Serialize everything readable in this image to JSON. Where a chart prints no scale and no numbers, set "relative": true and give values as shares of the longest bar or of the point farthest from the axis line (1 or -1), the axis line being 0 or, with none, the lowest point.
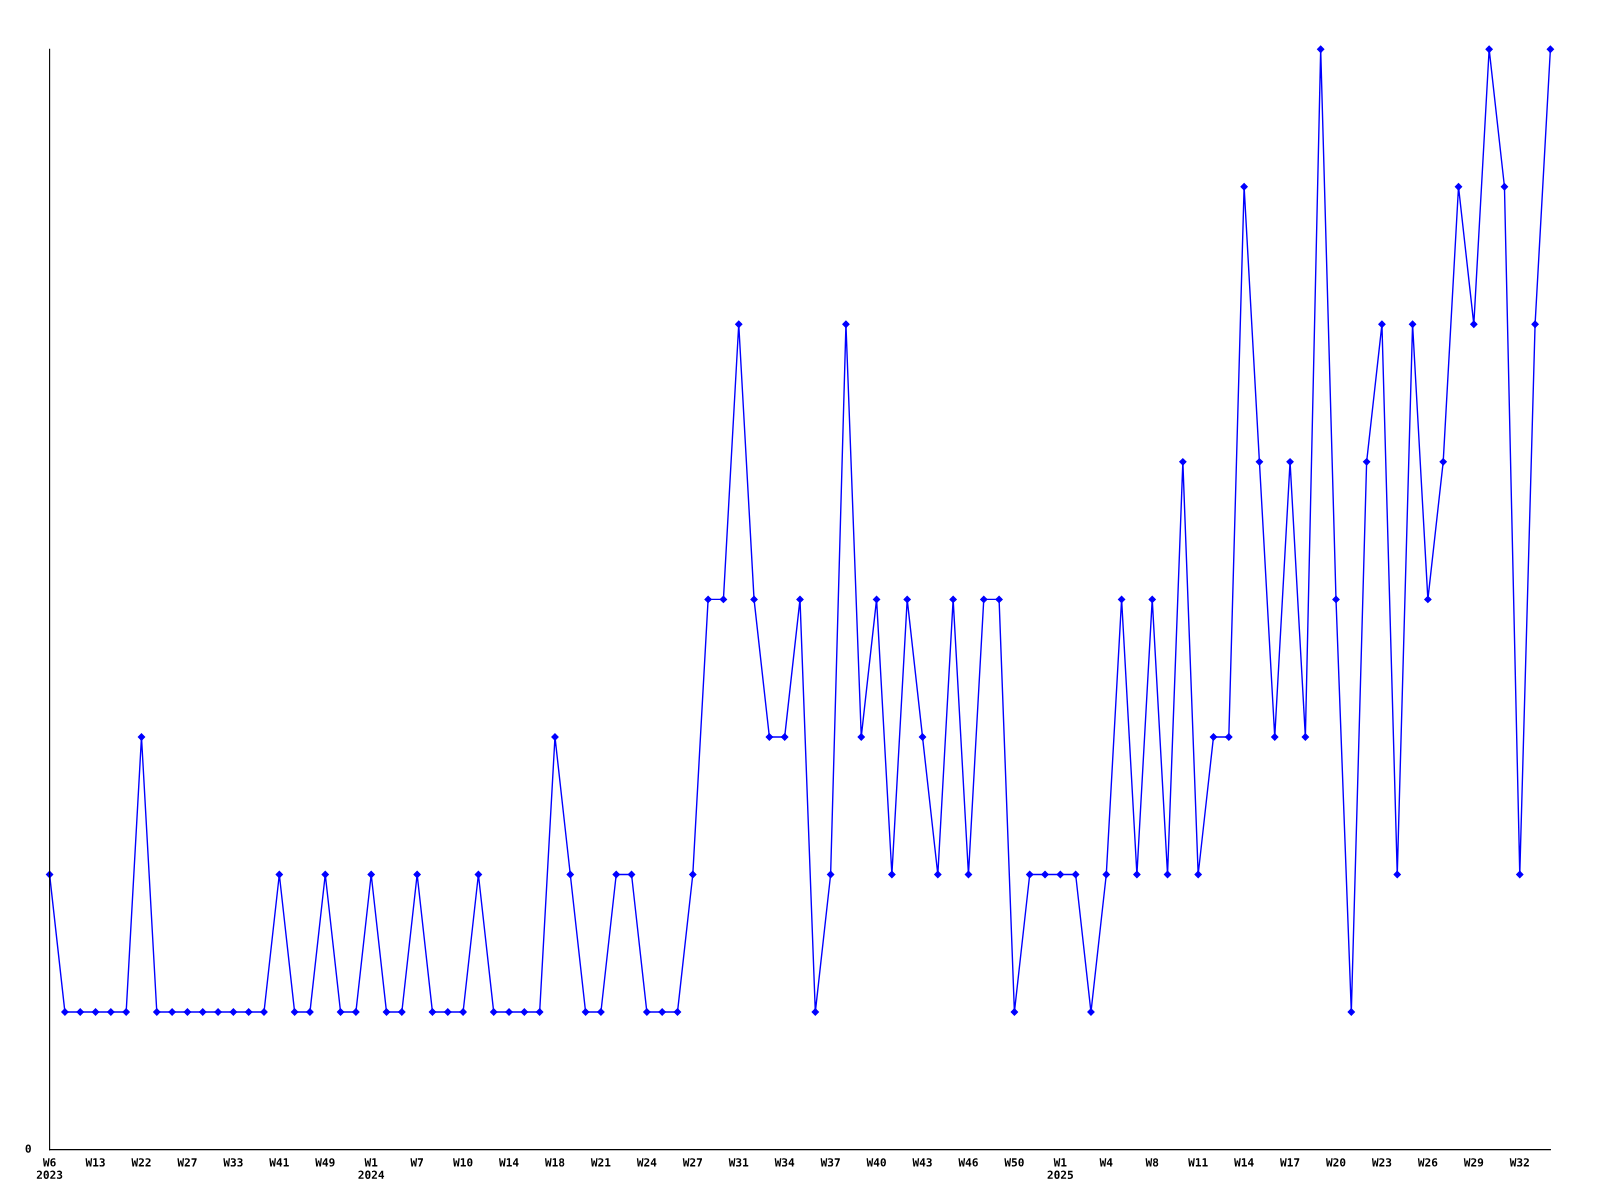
{
  "chart_data": {
    "type": "line",
    "relative": true,
    "color": "#0000ff",
    "marker": "diamond",
    "line_style": "solid",
    "grid": false,
    "annotations": [
      "0"
    ],
    "categories": [
      "W6\n2023",
      null,
      null,
      "W13",
      null,
      null,
      "W22",
      null,
      null,
      "W27",
      null,
      null,
      "W33",
      null,
      null,
      "W41",
      null,
      null,
      "W49",
      null,
      null,
      "W1\n2024",
      null,
      null,
      "W7",
      null,
      null,
      "W10",
      null,
      null,
      "W14",
      null,
      null,
      "W18",
      null,
      null,
      "W21",
      null,
      null,
      "W24",
      null,
      null,
      "W27",
      null,
      null,
      "W31",
      null,
      null,
      "W34",
      null,
      null,
      "W37",
      null,
      null,
      "W40",
      null,
      null,
      "W43",
      null,
      null,
      "W46",
      null,
      null,
      "W50",
      null,
      null,
      "W1\n2025",
      null,
      null,
      "W4",
      null,
      null,
      "W8",
      null,
      null,
      "W11",
      null,
      null,
      "W14",
      null,
      null,
      "W17",
      null,
      null,
      "W20",
      null,
      null,
      "W23",
      null,
      null,
      "W26",
      null,
      null,
      "W29",
      null,
      null,
      "W32",
      null,
      null
    ],
    "values": [
      0.25,
      0.125,
      0.125,
      0.125,
      0.125,
      0.125,
      0.375,
      0.125,
      0.125,
      0.125,
      0.125,
      0.125,
      0.125,
      0.125,
      0.125,
      0.25,
      0.125,
      0.125,
      0.25,
      0.125,
      0.125,
      0.25,
      0.125,
      0.125,
      0.25,
      0.125,
      0.125,
      0.125,
      0.25,
      0.125,
      0.125,
      0.125,
      0.125,
      0.375,
      0.25,
      0.125,
      0.125,
      0.25,
      0.25,
      0.125,
      0.125,
      0.125,
      0.25,
      0.5,
      0.5,
      0.75,
      0.5,
      0.375,
      0.375,
      0.5,
      0.125,
      0.25,
      0.75,
      0.375,
      0.5,
      0.25,
      0.5,
      0.375,
      0.25,
      0.5,
      0.25,
      0.5,
      0.5,
      0.125,
      0.25,
      0.25,
      0.25,
      0.25,
      0.125,
      0.25,
      0.5,
      0.25,
      0.5,
      0.25,
      0.625,
      0.25,
      0.375,
      0.375,
      0.875,
      0.625,
      0.375,
      0.625,
      0.375,
      1,
      0.5,
      0.125,
      0.625,
      0.75,
      0.25,
      0.75,
      0.5,
      0.625,
      0.875,
      0.75,
      1,
      0.875,
      0.25,
      0.75,
      1
    ]
  }
}
